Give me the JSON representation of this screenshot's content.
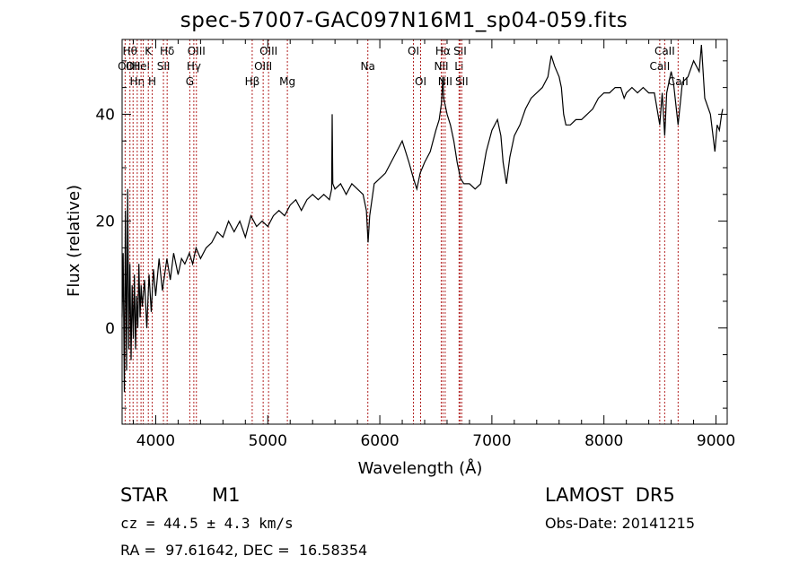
{
  "header": {
    "title": "spec-57007-GAC097N16M1_sp04-059.fits"
  },
  "info": {
    "object_class": "STAR",
    "subclass": "M1",
    "survey": "LAMOST  DR5",
    "cz": "cz = 44.5 ± 4.3 km/s",
    "obs_date": "Obs-Date: 20141215",
    "radec": "RA =  97.61642, DEC =  16.58354"
  },
  "colors": {
    "spectrum": "#000000",
    "line_marker": "#b22222",
    "axes": "#000000"
  },
  "chart_data": {
    "type": "line",
    "title": "spec-57007-GAC097N16M1_sp04-059.fits",
    "xlabel": "Wavelength (Å)",
    "ylabel": "Flux (relative)",
    "xlim": [
      3700,
      9100
    ],
    "ylim": [
      -18,
      54
    ],
    "xticks": [
      4000,
      5000,
      6000,
      7000,
      8000,
      9000
    ],
    "yticks": [
      0,
      20,
      40
    ],
    "grid": false,
    "series": [
      {
        "points": [
          [
            3700,
            2
          ],
          [
            3710,
            14
          ],
          [
            3720,
            -12
          ],
          [
            3730,
            22
          ],
          [
            3740,
            -8
          ],
          [
            3750,
            26
          ],
          [
            3760,
            -4
          ],
          [
            3770,
            12
          ],
          [
            3780,
            -6
          ],
          [
            3790,
            8
          ],
          [
            3800,
            -2
          ],
          [
            3810,
            10
          ],
          [
            3820,
            -4
          ],
          [
            3830,
            6
          ],
          [
            3840,
            0
          ],
          [
            3850,
            12
          ],
          [
            3860,
            2
          ],
          [
            3870,
            8
          ],
          [
            3880,
            4
          ],
          [
            3900,
            9
          ],
          [
            3920,
            0
          ],
          [
            3940,
            10
          ],
          [
            3960,
            3
          ],
          [
            3980,
            11
          ],
          [
            4000,
            6
          ],
          [
            4030,
            13
          ],
          [
            4060,
            7
          ],
          [
            4100,
            13
          ],
          [
            4130,
            9
          ],
          [
            4160,
            14
          ],
          [
            4200,
            10
          ],
          [
            4230,
            13
          ],
          [
            4260,
            12
          ],
          [
            4300,
            14
          ],
          [
            4330,
            12
          ],
          [
            4360,
            15
          ],
          [
            4400,
            13
          ],
          [
            4450,
            15
          ],
          [
            4500,
            16
          ],
          [
            4550,
            18
          ],
          [
            4600,
            17
          ],
          [
            4650,
            20
          ],
          [
            4700,
            18
          ],
          [
            4750,
            20
          ],
          [
            4800,
            17
          ],
          [
            4850,
            21
          ],
          [
            4900,
            19
          ],
          [
            4950,
            20
          ],
          [
            5000,
            19
          ],
          [
            5050,
            21
          ],
          [
            5100,
            22
          ],
          [
            5150,
            21
          ],
          [
            5200,
            23
          ],
          [
            5250,
            24
          ],
          [
            5300,
            22
          ],
          [
            5350,
            24
          ],
          [
            5400,
            25
          ],
          [
            5450,
            24
          ],
          [
            5500,
            25
          ],
          [
            5550,
            24
          ],
          [
            5570,
            26
          ],
          [
            5575,
            40
          ],
          [
            5580,
            27
          ],
          [
            5600,
            26
          ],
          [
            5650,
            27
          ],
          [
            5700,
            25
          ],
          [
            5750,
            27
          ],
          [
            5800,
            26
          ],
          [
            5850,
            25
          ],
          [
            5880,
            22
          ],
          [
            5895,
            16
          ],
          [
            5910,
            21
          ],
          [
            5950,
            27
          ],
          [
            6000,
            28
          ],
          [
            6050,
            29
          ],
          [
            6100,
            31
          ],
          [
            6150,
            33
          ],
          [
            6200,
            35
          ],
          [
            6230,
            33
          ],
          [
            6260,
            31
          ],
          [
            6300,
            28
          ],
          [
            6330,
            26
          ],
          [
            6360,
            29
          ],
          [
            6400,
            31
          ],
          [
            6450,
            33
          ],
          [
            6500,
            37
          ],
          [
            6530,
            39
          ],
          [
            6550,
            42
          ],
          [
            6563,
            47
          ],
          [
            6570,
            43
          ],
          [
            6600,
            40
          ],
          [
            6630,
            38
          ],
          [
            6660,
            35
          ],
          [
            6690,
            31
          ],
          [
            6720,
            28
          ],
          [
            6750,
            27
          ],
          [
            6800,
            27
          ],
          [
            6850,
            26
          ],
          [
            6900,
            27
          ],
          [
            6950,
            33
          ],
          [
            7000,
            37
          ],
          [
            7050,
            39
          ],
          [
            7080,
            36
          ],
          [
            7100,
            31
          ],
          [
            7130,
            27
          ],
          [
            7160,
            32
          ],
          [
            7200,
            36
          ],
          [
            7250,
            38
          ],
          [
            7300,
            41
          ],
          [
            7350,
            43
          ],
          [
            7400,
            44
          ],
          [
            7450,
            45
          ],
          [
            7500,
            47
          ],
          [
            7530,
            51
          ],
          [
            7560,
            49
          ],
          [
            7600,
            47
          ],
          [
            7620,
            45
          ],
          [
            7640,
            40
          ],
          [
            7660,
            38
          ],
          [
            7700,
            38
          ],
          [
            7750,
            39
          ],
          [
            7800,
            39
          ],
          [
            7850,
            40
          ],
          [
            7900,
            41
          ],
          [
            7950,
            43
          ],
          [
            8000,
            44
          ],
          [
            8050,
            44
          ],
          [
            8100,
            45
          ],
          [
            8150,
            45
          ],
          [
            8180,
            43
          ],
          [
            8200,
            44
          ],
          [
            8250,
            45
          ],
          [
            8300,
            44
          ],
          [
            8350,
            45
          ],
          [
            8400,
            44
          ],
          [
            8450,
            44
          ],
          [
            8498,
            38
          ],
          [
            8520,
            44
          ],
          [
            8542,
            36
          ],
          [
            8560,
            44
          ],
          [
            8600,
            48
          ],
          [
            8620,
            46
          ],
          [
            8662,
            38
          ],
          [
            8700,
            46
          ],
          [
            8750,
            47
          ],
          [
            8800,
            50
          ],
          [
            8850,
            48
          ],
          [
            8870,
            53
          ],
          [
            8900,
            43
          ],
          [
            8950,
            40
          ],
          [
            8990,
            33
          ],
          [
            9010,
            38
          ],
          [
            9030,
            37
          ],
          [
            9050,
            40
          ],
          [
            9060,
            41
          ]
        ]
      }
    ],
    "lines": [
      {
        "wl": 3727,
        "label": "OII",
        "row": 2
      },
      {
        "wl": 3770,
        "label": "Hθ",
        "row": 1
      },
      {
        "wl": 3798,
        "label": "OII",
        "row": 2
      },
      {
        "wl": 3835,
        "label": "Hη",
        "row": 3
      },
      {
        "wl": 3869,
        "label": "HeI",
        "row": 2
      },
      {
        "wl": 3889,
        "label": "",
        "row": 0
      },
      {
        "wl": 3934,
        "label": "K",
        "row": 1
      },
      {
        "wl": 3969,
        "label": "H",
        "row": 3
      },
      {
        "wl": 4069,
        "label": "SII",
        "row": 2
      },
      {
        "wl": 4102,
        "label": "Hδ",
        "row": 1
      },
      {
        "wl": 4304,
        "label": "G",
        "row": 3
      },
      {
        "wl": 4340,
        "label": "Hγ",
        "row": 2
      },
      {
        "wl": 4363,
        "label": "OIII",
        "row": 1
      },
      {
        "wl": 4861,
        "label": "Hβ",
        "row": 3
      },
      {
        "wl": 4959,
        "label": "OIII",
        "row": 2
      },
      {
        "wl": 5007,
        "label": "OIII",
        "row": 1
      },
      {
        "wl": 5175,
        "label": "Mg",
        "row": 3
      },
      {
        "wl": 5893,
        "label": "Na",
        "row": 2
      },
      {
        "wl": 6300,
        "label": "OI",
        "row": 1
      },
      {
        "wl": 6364,
        "label": "OI",
        "row": 3
      },
      {
        "wl": 6548,
        "label": "NII",
        "row": 2
      },
      {
        "wl": 6563,
        "label": "Hα",
        "row": 1
      },
      {
        "wl": 6583,
        "label": "NII",
        "row": 3
      },
      {
        "wl": 6707,
        "label": "Li",
        "row": 2
      },
      {
        "wl": 6716,
        "label": "SII",
        "row": 1
      },
      {
        "wl": 6731,
        "label": "SII",
        "row": 3
      },
      {
        "wl": 8498,
        "label": "CaII",
        "row": 2
      },
      {
        "wl": 8542,
        "label": "CaII",
        "row": 1
      },
      {
        "wl": 8662,
        "label": "CaII",
        "row": 3
      }
    ]
  }
}
